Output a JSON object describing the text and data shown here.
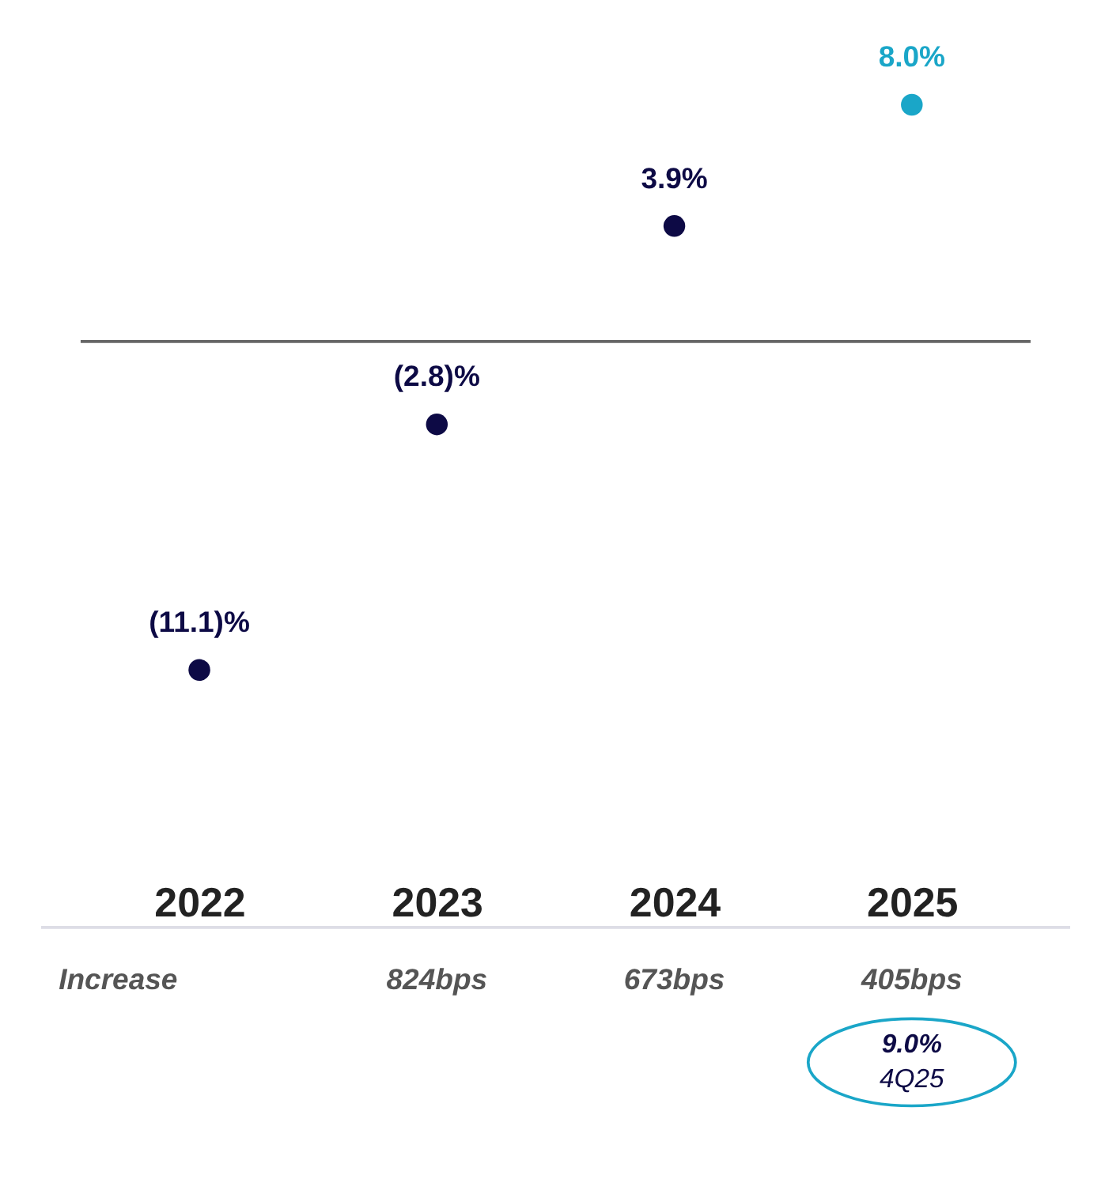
{
  "chart_data": {
    "type": "scatter",
    "categories": [
      "2022",
      "2023",
      "2024",
      "2025"
    ],
    "values": [
      -11.1,
      -2.8,
      3.9,
      8.0
    ],
    "colors": [
      "#0d0a45",
      "#0d0a45",
      "#0d0a45",
      "#1aa6c8"
    ],
    "value_labels": [
      "(11.1)%",
      "(2.8)%",
      "3.9%",
      "8.0%"
    ],
    "ref_lines": [
      {
        "axis": "y",
        "value": 0,
        "color": "#666666"
      }
    ],
    "annotations": [
      "Increase",
      "824bps",
      "673bps",
      "405bps",
      "9.0%",
      "4Q25"
    ],
    "grid": false
  }
}
